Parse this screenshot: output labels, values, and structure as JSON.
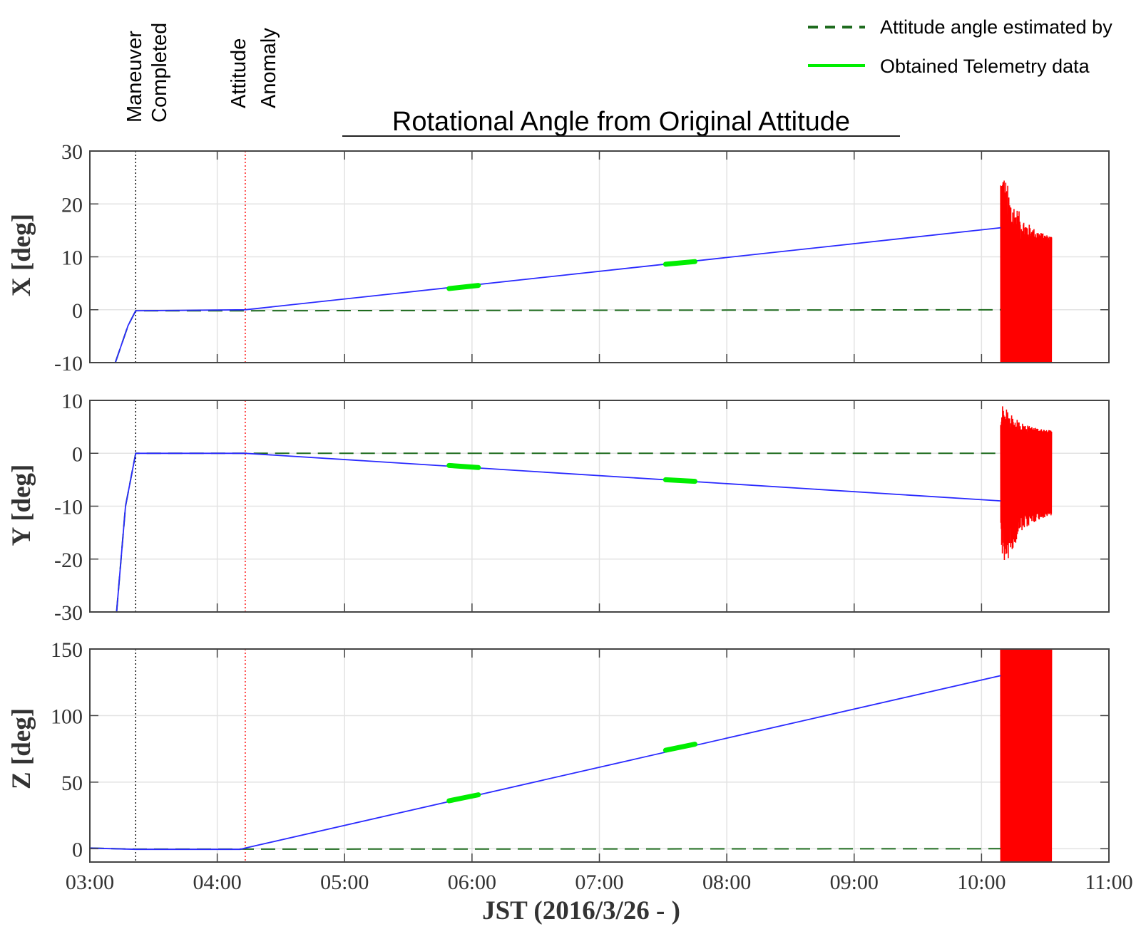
{
  "figure": {
    "title": "Rotational Angle from Original Attitude",
    "xlabel": "JST (2016/3/26 - )",
    "colors": {
      "estimated": "#1e6b1e",
      "telemetry": "#00ee00",
      "trajectory": "#2a2aff",
      "anomaly_burst": "#ff0000",
      "maneuver_marker": "#000000",
      "anomaly_marker": "#ff0000",
      "grid": "#e3e3e3"
    }
  },
  "legend": {
    "position": "top-right",
    "items": [
      {
        "label": "Attitude angle estimated by",
        "style": "dashed",
        "color": "#1e6b1e"
      },
      {
        "label": "Obtained Telemetry data",
        "style": "solid",
        "color": "#00ee00"
      }
    ]
  },
  "events": [
    {
      "label_lines": [
        "Maneuver",
        "Completed"
      ],
      "time": 3.36,
      "color": "#000000"
    },
    {
      "label_lines": [
        "Attitude",
        "Anomaly"
      ],
      "time": 4.22,
      "color": "#ff0000"
    }
  ],
  "chart_data": [
    {
      "type": "line",
      "ylabel": "X [deg]",
      "xlim": [
        3.0,
        11.0
      ],
      "ylim": [
        -10,
        30
      ],
      "xticks": [
        3,
        4,
        5,
        6,
        7,
        8,
        9,
        10,
        11
      ],
      "yticks": [
        -10,
        0,
        10,
        20,
        30
      ],
      "ytick_labels": [
        "-10",
        "0",
        "10",
        "20",
        "30"
      ],
      "grid": true,
      "series": [
        {
          "name": "Attitude angle estimated by",
          "style": "dashed",
          "x": [
            3.2,
            3.3,
            3.36,
            4.22,
            10.15
          ],
          "y": [
            -10.0,
            -3.0,
            -0.2,
            -0.2,
            0.0
          ]
        },
        {
          "style": "solid",
          "x": [
            3.2,
            3.3,
            3.36,
            4.22,
            10.15
          ],
          "y": [
            -10.0,
            -3.0,
            -0.2,
            0.0,
            15.5
          ]
        },
        {
          "name": "Obtained Telemetry data",
          "style": "telemetry",
          "segments": [
            [
              [
                5.82,
                4.0
              ],
              [
                6.05,
                4.6
              ]
            ],
            [
              [
                7.52,
                8.6
              ],
              [
                7.75,
                9.1
              ]
            ]
          ]
        }
      ],
      "burst": {
        "x_start": 10.15,
        "x_end": 10.55,
        "y_min": -10,
        "y_max": 29,
        "mean_high": 13,
        "mean_low": -10
      }
    },
    {
      "type": "line",
      "ylabel": "Y [deg]",
      "xlim": [
        3.0,
        11.0
      ],
      "ylim": [
        -30,
        10
      ],
      "xticks": [
        3,
        4,
        5,
        6,
        7,
        8,
        9,
        10,
        11
      ],
      "yticks": [
        -30,
        -20,
        -10,
        0,
        10
      ],
      "ytick_labels": [
        "-30",
        "-20",
        "-10",
        "0",
        "10"
      ],
      "grid": true,
      "series": [
        {
          "name": "Attitude angle estimated by",
          "style": "dashed",
          "x": [
            3.21,
            3.28,
            3.36,
            4.22,
            10.15
          ],
          "y": [
            -30.0,
            -10.0,
            0.0,
            0.0,
            0.0
          ]
        },
        {
          "style": "solid",
          "x": [
            3.21,
            3.28,
            3.36,
            4.22,
            10.15
          ],
          "y": [
            -30.0,
            -10.0,
            0.0,
            0.0,
            -9.0
          ]
        },
        {
          "name": "Obtained Telemetry data",
          "style": "telemetry",
          "segments": [
            [
              [
                5.82,
                -2.3
              ],
              [
                6.05,
                -2.7
              ]
            ],
            [
              [
                7.52,
                -5.0
              ],
              [
                7.75,
                -5.3
              ]
            ]
          ]
        }
      ],
      "burst": {
        "x_start": 10.15,
        "x_end": 10.55,
        "y_min": -25,
        "y_max": 10,
        "mean_high": 4,
        "mean_low": -11
      }
    },
    {
      "type": "line",
      "ylabel": "Z [deg]",
      "xlim": [
        3.0,
        11.0
      ],
      "ylim": [
        -10,
        150
      ],
      "xticks": [
        3,
        4,
        5,
        6,
        7,
        8,
        9,
        10,
        11
      ],
      "xtick_labels": [
        "03:00",
        "04:00",
        "05:00",
        "06:00",
        "07:00",
        "08:00",
        "09:00",
        "10:00",
        "11:00"
      ],
      "yticks": [
        0,
        50,
        100,
        150
      ],
      "ytick_labels": [
        "0",
        "50",
        "100",
        "150"
      ],
      "grid": true,
      "series": [
        {
          "name": "Attitude angle estimated by",
          "style": "dashed",
          "x": [
            3.0,
            3.36,
            4.22,
            10.15
          ],
          "y": [
            0.5,
            -0.3,
            -0.3,
            0.0
          ]
        },
        {
          "style": "solid",
          "x": [
            3.0,
            3.36,
            4.18,
            4.22,
            10.15
          ],
          "y": [
            0.5,
            -0.5,
            -0.5,
            0.5,
            130.0
          ]
        },
        {
          "name": "Obtained Telemetry data",
          "style": "telemetry",
          "segments": [
            [
              [
                5.82,
                36.0
              ],
              [
                6.05,
                40.5
              ]
            ],
            [
              [
                7.52,
                74.0
              ],
              [
                7.75,
                78.5
              ]
            ]
          ]
        }
      ],
      "burst": {
        "x_start": 10.15,
        "x_end": 10.55,
        "y_min": -10,
        "y_max": 150,
        "mean_high": 150,
        "mean_low": -10
      }
    }
  ]
}
